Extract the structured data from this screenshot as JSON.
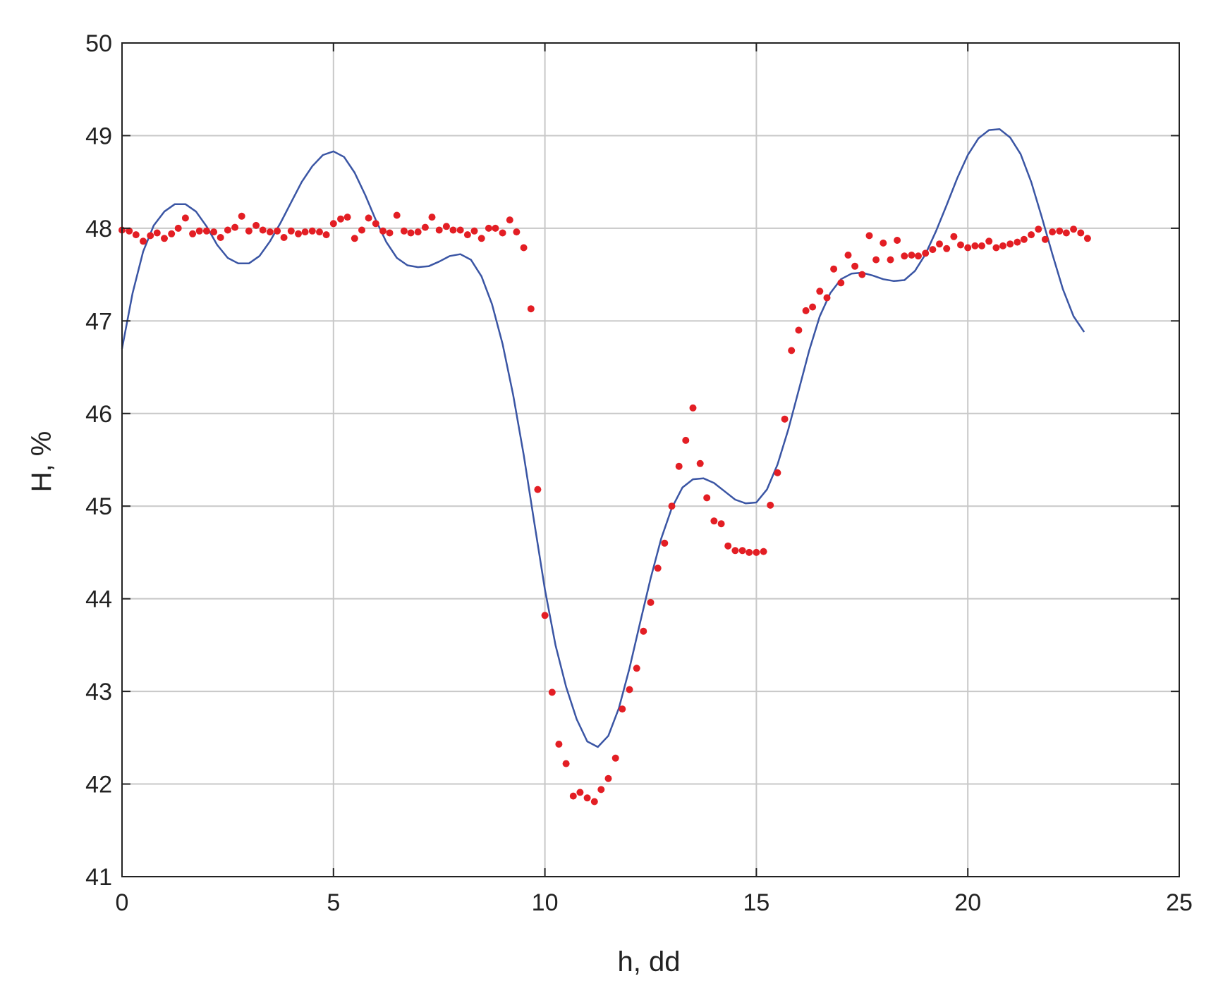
{
  "chart_data": {
    "type": "scatter",
    "xlabel": "h, dd",
    "ylabel": "H, %",
    "xlim": [
      0,
      25
    ],
    "ylim": [
      41,
      50
    ],
    "xticks": [
      0,
      5,
      10,
      15,
      20,
      25
    ],
    "yticks": [
      41,
      42,
      43,
      44,
      45,
      46,
      47,
      48,
      49,
      50
    ],
    "grid": true,
    "legend": "none",
    "colors": {
      "points": "#e31e24",
      "line": "#3a55a4",
      "grid": "#c8c8c8",
      "axes": "#222222"
    },
    "series": [
      {
        "kind": "scatter",
        "points": [
          [
            0.0,
            47.98
          ],
          [
            0.17,
            47.97
          ],
          [
            0.33,
            47.93
          ],
          [
            0.5,
            47.86
          ],
          [
            0.67,
            47.92
          ],
          [
            0.83,
            47.95
          ],
          [
            1.0,
            47.89
          ],
          [
            1.17,
            47.94
          ],
          [
            1.33,
            48.0
          ],
          [
            1.5,
            48.11
          ],
          [
            1.67,
            47.94
          ],
          [
            1.83,
            47.97
          ],
          [
            2.0,
            47.97
          ],
          [
            2.17,
            47.96
          ],
          [
            2.33,
            47.9
          ],
          [
            2.5,
            47.98
          ],
          [
            2.67,
            48.01
          ],
          [
            2.83,
            48.13
          ],
          [
            3.0,
            47.97
          ],
          [
            3.17,
            48.03
          ],
          [
            3.33,
            47.98
          ],
          [
            3.5,
            47.96
          ],
          [
            3.67,
            47.97
          ],
          [
            3.83,
            47.9
          ],
          [
            4.0,
            47.97
          ],
          [
            4.17,
            47.94
          ],
          [
            4.33,
            47.96
          ],
          [
            4.5,
            47.97
          ],
          [
            4.67,
            47.96
          ],
          [
            4.83,
            47.93
          ],
          [
            5.0,
            48.05
          ],
          [
            5.17,
            48.1
          ],
          [
            5.33,
            48.12
          ],
          [
            5.5,
            47.89
          ],
          [
            5.67,
            47.98
          ],
          [
            5.83,
            48.11
          ],
          [
            6.0,
            48.05
          ],
          [
            6.17,
            47.97
          ],
          [
            6.33,
            47.95
          ],
          [
            6.5,
            48.14
          ],
          [
            6.67,
            47.97
          ],
          [
            6.83,
            47.95
          ],
          [
            7.0,
            47.96
          ],
          [
            7.17,
            48.01
          ],
          [
            7.33,
            48.12
          ],
          [
            7.5,
            47.98
          ],
          [
            7.67,
            48.02
          ],
          [
            7.83,
            47.98
          ],
          [
            8.0,
            47.98
          ],
          [
            8.17,
            47.93
          ],
          [
            8.33,
            47.97
          ],
          [
            8.5,
            47.89
          ],
          [
            8.67,
            48.0
          ],
          [
            8.83,
            48.0
          ],
          [
            9.0,
            47.95
          ],
          [
            9.17,
            48.09
          ],
          [
            9.33,
            47.96
          ],
          [
            9.5,
            47.79
          ],
          [
            9.67,
            47.13
          ],
          [
            9.83,
            45.18
          ],
          [
            10.0,
            43.82
          ],
          [
            10.17,
            42.99
          ],
          [
            10.33,
            42.43
          ],
          [
            10.5,
            42.22
          ],
          [
            10.67,
            41.87
          ],
          [
            10.83,
            41.91
          ],
          [
            11.0,
            41.85
          ],
          [
            11.17,
            41.81
          ],
          [
            11.33,
            41.94
          ],
          [
            11.5,
            42.06
          ],
          [
            11.67,
            42.28
          ],
          [
            11.83,
            42.81
          ],
          [
            12.0,
            43.02
          ],
          [
            12.17,
            43.25
          ],
          [
            12.33,
            43.65
          ],
          [
            12.5,
            43.96
          ],
          [
            12.67,
            44.33
          ],
          [
            12.83,
            44.6
          ],
          [
            13.0,
            45.0
          ],
          [
            13.17,
            45.43
          ],
          [
            13.33,
            45.71
          ],
          [
            13.5,
            46.06
          ],
          [
            13.67,
            45.46
          ],
          [
            13.83,
            45.09
          ],
          [
            14.0,
            44.84
          ],
          [
            14.17,
            44.81
          ],
          [
            14.33,
            44.57
          ],
          [
            14.5,
            44.52
          ],
          [
            14.67,
            44.52
          ],
          [
            14.83,
            44.5
          ],
          [
            15.0,
            44.5
          ],
          [
            15.17,
            44.51
          ],
          [
            15.33,
            45.01
          ],
          [
            15.5,
            45.36
          ],
          [
            15.67,
            45.94
          ],
          [
            15.83,
            46.68
          ],
          [
            16.0,
            46.9
          ],
          [
            16.17,
            47.11
          ],
          [
            16.33,
            47.15
          ],
          [
            16.5,
            47.32
          ],
          [
            16.67,
            47.25
          ],
          [
            16.83,
            47.56
          ],
          [
            17.0,
            47.41
          ],
          [
            17.17,
            47.71
          ],
          [
            17.33,
            47.59
          ],
          [
            17.5,
            47.5
          ],
          [
            17.67,
            47.92
          ],
          [
            17.83,
            47.66
          ],
          [
            18.0,
            47.84
          ],
          [
            18.17,
            47.66
          ],
          [
            18.33,
            47.87
          ],
          [
            18.5,
            47.7
          ],
          [
            18.67,
            47.71
          ],
          [
            18.83,
            47.7
          ],
          [
            19.0,
            47.73
          ],
          [
            19.17,
            47.77
          ],
          [
            19.33,
            47.83
          ],
          [
            19.5,
            47.78
          ],
          [
            19.67,
            47.91
          ],
          [
            19.83,
            47.82
          ],
          [
            20.0,
            47.79
          ],
          [
            20.17,
            47.81
          ],
          [
            20.33,
            47.81
          ],
          [
            20.5,
            47.86
          ],
          [
            20.67,
            47.79
          ],
          [
            20.83,
            47.81
          ],
          [
            21.0,
            47.83
          ],
          [
            21.17,
            47.85
          ],
          [
            21.33,
            47.88
          ],
          [
            21.5,
            47.93
          ],
          [
            21.67,
            47.99
          ],
          [
            21.83,
            47.88
          ],
          [
            22.0,
            47.96
          ],
          [
            22.17,
            47.97
          ],
          [
            22.33,
            47.95
          ],
          [
            22.5,
            47.99
          ],
          [
            22.67,
            47.95
          ],
          [
            22.83,
            47.89
          ]
        ]
      },
      {
        "kind": "line",
        "points": [
          [
            0.0,
            46.7
          ],
          [
            0.25,
            47.3
          ],
          [
            0.5,
            47.75
          ],
          [
            0.75,
            48.03
          ],
          [
            1.0,
            48.18
          ],
          [
            1.25,
            48.26
          ],
          [
            1.5,
            48.26
          ],
          [
            1.75,
            48.18
          ],
          [
            2.0,
            48.02
          ],
          [
            2.25,
            47.82
          ],
          [
            2.5,
            47.68
          ],
          [
            2.75,
            47.62
          ],
          [
            3.0,
            47.62
          ],
          [
            3.25,
            47.7
          ],
          [
            3.5,
            47.86
          ],
          [
            3.75,
            48.06
          ],
          [
            4.0,
            48.28
          ],
          [
            4.25,
            48.5
          ],
          [
            4.5,
            48.67
          ],
          [
            4.75,
            48.79
          ],
          [
            5.0,
            48.83
          ],
          [
            5.25,
            48.77
          ],
          [
            5.5,
            48.6
          ],
          [
            5.75,
            48.36
          ],
          [
            6.0,
            48.09
          ],
          [
            6.25,
            47.85
          ],
          [
            6.5,
            47.68
          ],
          [
            6.75,
            47.6
          ],
          [
            7.0,
            47.58
          ],
          [
            7.25,
            47.59
          ],
          [
            7.5,
            47.64
          ],
          [
            7.75,
            47.7
          ],
          [
            8.0,
            47.72
          ],
          [
            8.25,
            47.66
          ],
          [
            8.5,
            47.48
          ],
          [
            8.75,
            47.18
          ],
          [
            9.0,
            46.75
          ],
          [
            9.25,
            46.2
          ],
          [
            9.5,
            45.55
          ],
          [
            9.75,
            44.82
          ],
          [
            10.0,
            44.1
          ],
          [
            10.25,
            43.5
          ],
          [
            10.5,
            43.05
          ],
          [
            10.75,
            42.7
          ],
          [
            11.0,
            42.46
          ],
          [
            11.25,
            42.4
          ],
          [
            11.5,
            42.52
          ],
          [
            11.75,
            42.82
          ],
          [
            12.0,
            43.25
          ],
          [
            12.25,
            43.74
          ],
          [
            12.5,
            44.22
          ],
          [
            12.75,
            44.65
          ],
          [
            13.0,
            44.98
          ],
          [
            13.25,
            45.2
          ],
          [
            13.5,
            45.29
          ],
          [
            13.75,
            45.3
          ],
          [
            14.0,
            45.25
          ],
          [
            14.25,
            45.16
          ],
          [
            14.5,
            45.07
          ],
          [
            14.75,
            45.03
          ],
          [
            15.0,
            45.04
          ],
          [
            15.25,
            45.18
          ],
          [
            15.5,
            45.45
          ],
          [
            15.75,
            45.82
          ],
          [
            16.0,
            46.25
          ],
          [
            16.25,
            46.68
          ],
          [
            16.5,
            47.05
          ],
          [
            16.75,
            47.3
          ],
          [
            17.0,
            47.45
          ],
          [
            17.25,
            47.51
          ],
          [
            17.5,
            47.52
          ],
          [
            17.75,
            47.49
          ],
          [
            18.0,
            47.45
          ],
          [
            18.25,
            47.43
          ],
          [
            18.5,
            47.44
          ],
          [
            18.75,
            47.54
          ],
          [
            19.0,
            47.72
          ],
          [
            19.25,
            47.97
          ],
          [
            19.5,
            48.25
          ],
          [
            19.75,
            48.54
          ],
          [
            20.0,
            48.79
          ],
          [
            20.25,
            48.97
          ],
          [
            20.5,
            49.06
          ],
          [
            20.75,
            49.07
          ],
          [
            21.0,
            48.98
          ],
          [
            21.25,
            48.8
          ],
          [
            21.5,
            48.5
          ],
          [
            21.75,
            48.12
          ],
          [
            22.0,
            47.72
          ],
          [
            22.25,
            47.34
          ],
          [
            22.5,
            47.05
          ],
          [
            22.75,
            46.88
          ]
        ]
      }
    ]
  }
}
